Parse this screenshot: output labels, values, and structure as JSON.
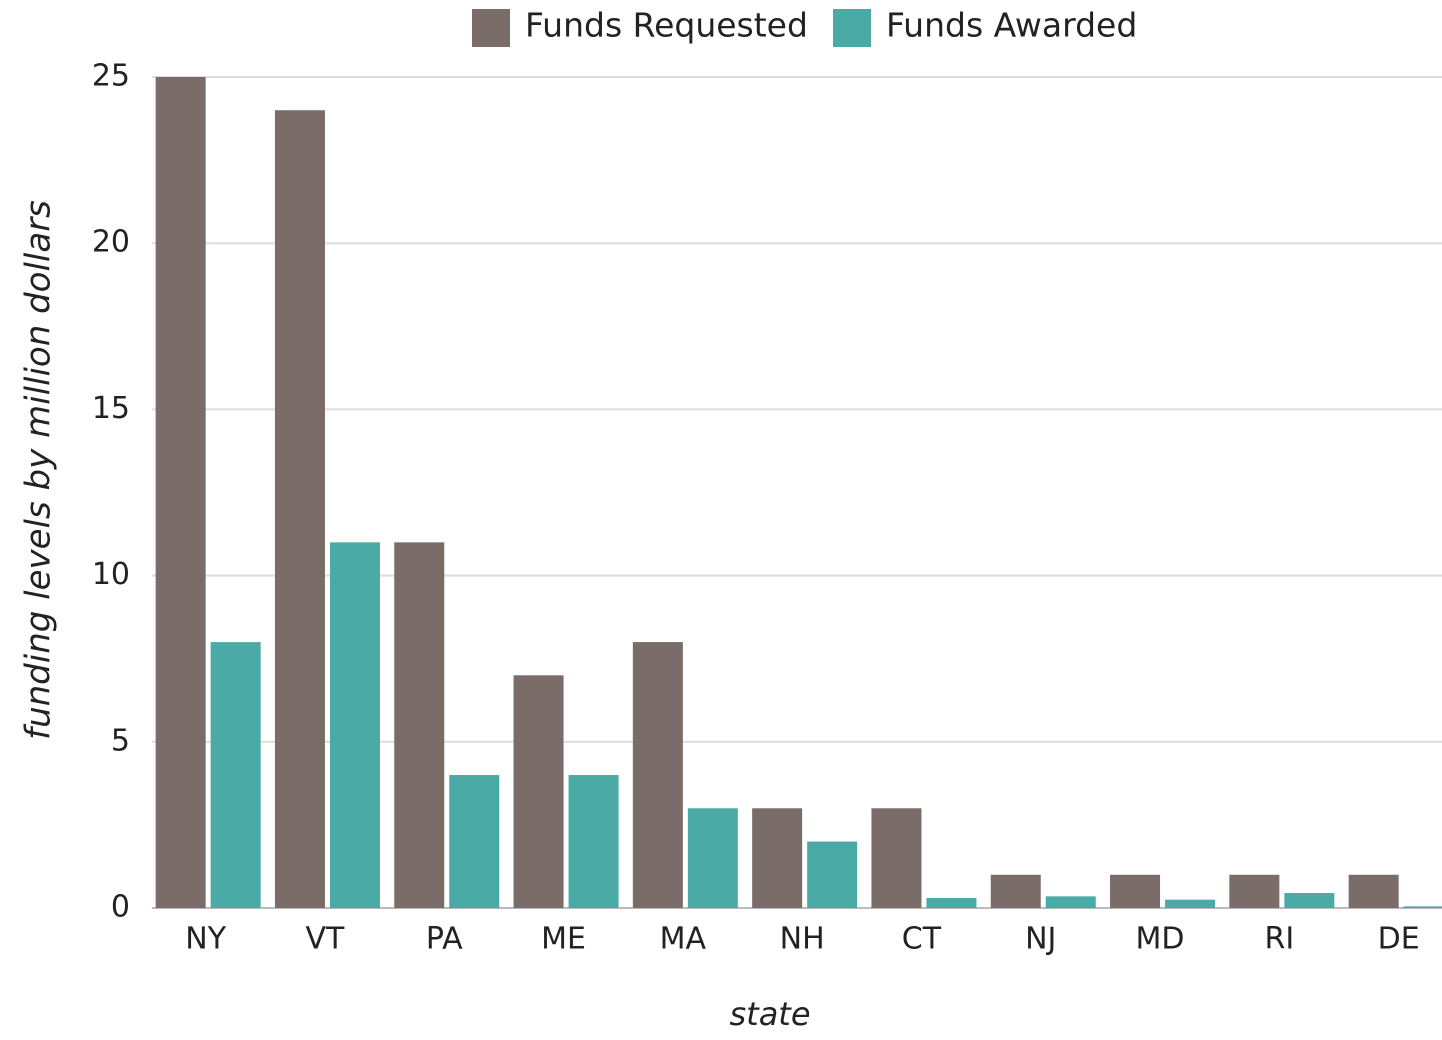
{
  "chart_data": {
    "type": "bar",
    "x_label": "state",
    "y_label": "funding levels by million dollars",
    "categories": [
      "NY",
      "VT",
      "PA",
      "ME",
      "MA",
      "NH",
      "CT",
      "NJ",
      "MD",
      "RI",
      "DE"
    ],
    "series": [
      {
        "name": "Funds Requested",
        "color": "#7a6c68",
        "values": [
          25,
          24,
          11,
          7,
          8,
          3,
          3,
          1,
          1,
          1,
          1
        ]
      },
      {
        "name": "Funds Awarded",
        "color": "#4aaba6",
        "values": [
          8,
          11,
          4,
          4,
          3,
          2,
          0.3,
          0.35,
          0.25,
          0.45,
          0.05
        ]
      }
    ],
    "ylim": [
      0,
      25
    ],
    "yticks": [
      0,
      5,
      10,
      15,
      20,
      25
    ],
    "grid": true,
    "legend": "top"
  }
}
